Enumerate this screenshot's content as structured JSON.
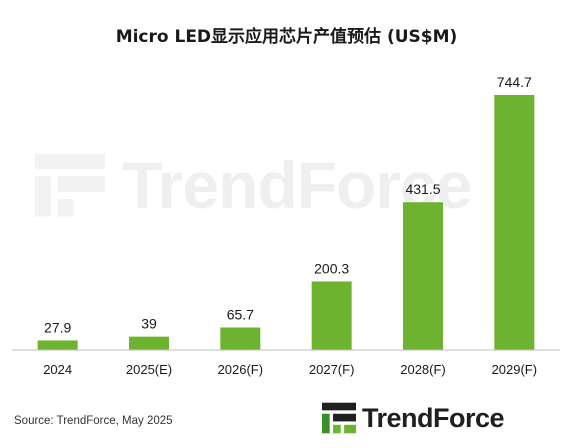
{
  "title": "Micro LED显示应用芯片产值预估 (US$M)",
  "source": "Source: TrendForce, May 2025",
  "logo_text": "TrendForce",
  "watermark_text": "TrendForce",
  "colors": {
    "bar": "#6db32f",
    "axis": "#bfbfbf",
    "text": "#1a1a1a"
  },
  "chart_data": {
    "type": "bar",
    "title": "Micro LED显示应用芯片产值预估 (US$M)",
    "categories": [
      "2024",
      "2025(E)",
      "2026(F)",
      "2027(F)",
      "2028(F)",
      "2029(F)"
    ],
    "values": [
      27.9,
      39,
      65.7,
      200.3,
      431.5,
      744.7
    ],
    "value_labels": [
      "27.9",
      "39",
      "65.7",
      "200.3",
      "431.5",
      "744.7"
    ],
    "xlabel": "",
    "ylabel": "",
    "ylim": [
      0,
      744.7
    ],
    "grid": false,
    "legend": "none"
  }
}
